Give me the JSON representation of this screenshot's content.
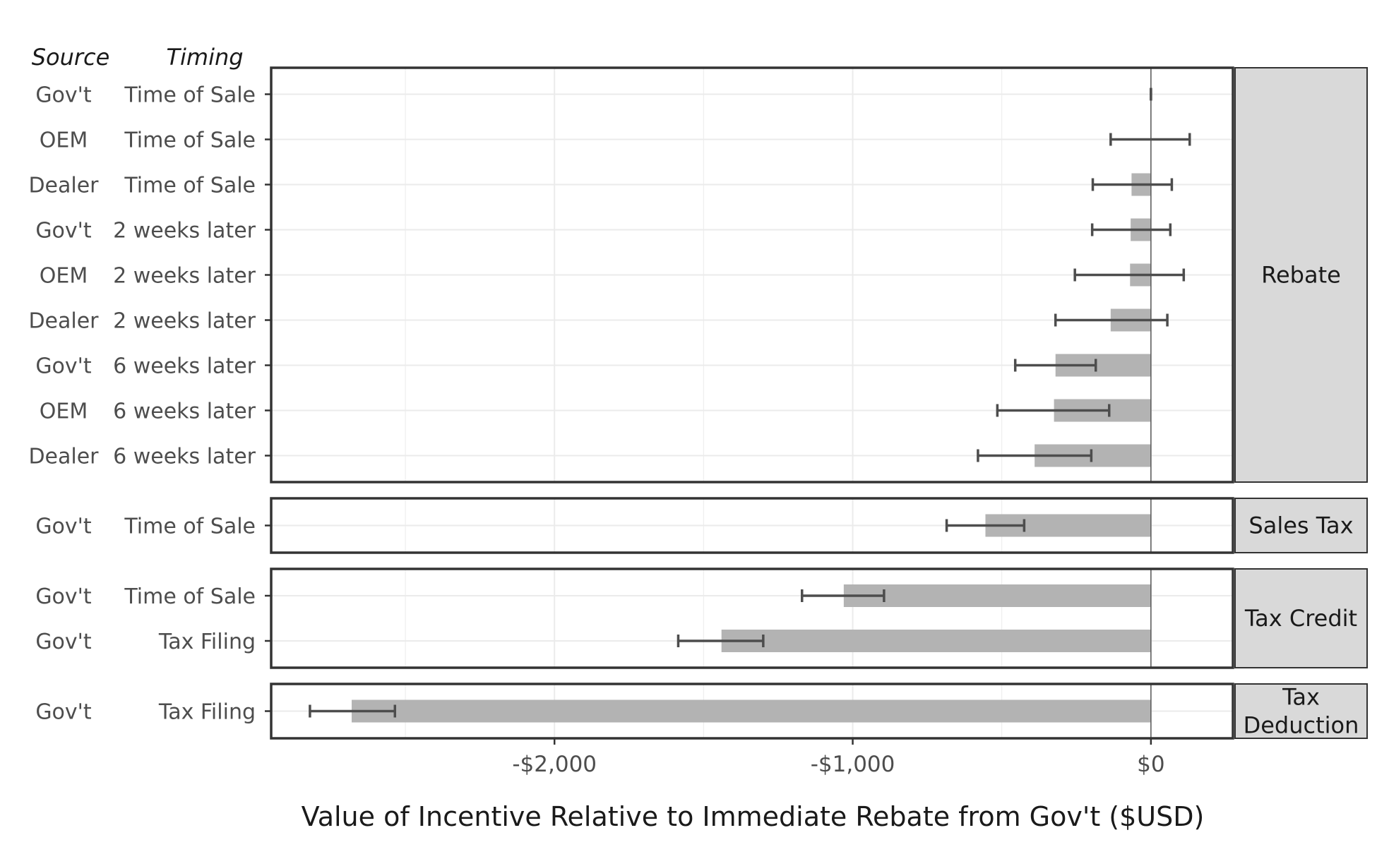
{
  "chart_data": {
    "type": "bar",
    "column_headers": {
      "source": "Source",
      "timing": "Timing"
    },
    "xlabel": "Value of Incentive Relative to Immediate Rebate from Gov't ($USD)",
    "xlim": [
      -2950,
      275
    ],
    "x_ticks": [
      {
        "value": -2000,
        "label": "-$2,000"
      },
      {
        "value": -1000,
        "label": "-$1,000"
      },
      {
        "value": 0,
        "label": "$0"
      }
    ],
    "grid": true,
    "colors": {
      "bar": "#b3b3b3",
      "errorbar": "#4d4d4d",
      "zero_line": "#595959",
      "strip": "#d9d9d9",
      "panel_border": "#333333"
    },
    "panels": [
      {
        "label": "Rebate",
        "rows": [
          {
            "source": "Gov't",
            "timing": "Time of Sale",
            "value": 0,
            "low": 0,
            "high": 0
          },
          {
            "source": "OEM",
            "timing": "Time of Sale",
            "value": 0,
            "low": -135,
            "high": 130
          },
          {
            "source": "Dealer",
            "timing": "Time of Sale",
            "value": -65,
            "low": -195,
            "high": 70
          },
          {
            "source": "Gov't",
            "timing": "2 weeks later",
            "value": -68,
            "low": -197,
            "high": 65
          },
          {
            "source": "OEM",
            "timing": "2 weeks later",
            "value": -70,
            "low": -255,
            "high": 110
          },
          {
            "source": "Dealer",
            "timing": "2 weeks later",
            "value": -135,
            "low": -320,
            "high": 55
          },
          {
            "source": "Gov't",
            "timing": "6 weeks later",
            "value": -320,
            "low": -455,
            "high": -185
          },
          {
            "source": "OEM",
            "timing": "6 weeks later",
            "value": -325,
            "low": -515,
            "high": -140
          },
          {
            "source": "Dealer",
            "timing": "6 weeks later",
            "value": -390,
            "low": -580,
            "high": -200
          }
        ]
      },
      {
        "label": "Sales Tax",
        "rows": [
          {
            "source": "Gov't",
            "timing": "Time of Sale",
            "value": -555,
            "low": -685,
            "high": -425
          }
        ]
      },
      {
        "label": "Tax Credit",
        "rows": [
          {
            "source": "Gov't",
            "timing": "Time of Sale",
            "value": -1030,
            "low": -1170,
            "high": -895
          },
          {
            "source": "Gov't",
            "timing": "Tax Filing",
            "value": -1440,
            "low": -1585,
            "high": -1300
          }
        ]
      },
      {
        "label": "Tax Deduction",
        "label_lines": [
          "Tax",
          "Deduction"
        ],
        "rows": [
          {
            "source": "Gov't",
            "timing": "Tax Filing",
            "value": -2680,
            "low": -2820,
            "high": -2535
          }
        ]
      }
    ]
  }
}
